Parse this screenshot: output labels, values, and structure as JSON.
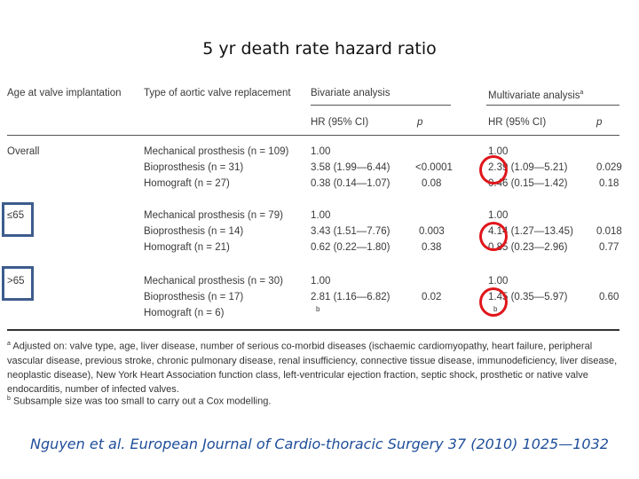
{
  "title": "5 yr death rate hazard ratio",
  "table": {
    "headers": {
      "age": "Age at valve implantation",
      "type": "Type of aortic valve replacement",
      "bivariate": "Bivariate analysis",
      "multivariate": "Multivariate analysis",
      "multivariate_sup": "a",
      "hr_ci": "HR (95% CI)",
      "p": "p"
    },
    "groups": [
      {
        "label": "Overall",
        "rows": [
          {
            "type": "Mechanical prosthesis (n = 109)",
            "bi_hr": "1.00",
            "bi_p": "",
            "multi_hr": "1.00",
            "multi_p": ""
          },
          {
            "type": "Bioprosthesis (n = 31)",
            "bi_hr": "3.58 (1.99—6.44)",
            "bi_p": "<0.0001",
            "multi_hr": "2.39 (1.09—5.21)",
            "multi_p": "0.029"
          },
          {
            "type": "Homograft (n = 27)",
            "bi_hr": "0.38 (0.14—1.07)",
            "bi_p": "0.08",
            "multi_hr": "0.46 (0.15—1.42)",
            "multi_p": "0.18"
          }
        ]
      },
      {
        "label": "≤65",
        "rows": [
          {
            "type": "Mechanical prosthesis (n = 79)",
            "bi_hr": "1.00",
            "bi_p": "",
            "multi_hr": "1.00",
            "multi_p": ""
          },
          {
            "type": "Bioprosthesis (n = 14)",
            "bi_hr": "3.43 (1.51—7.76)",
            "bi_p": "0.003",
            "multi_hr": "4.14 (1.27—13.45)",
            "multi_p": "0.018"
          },
          {
            "type": "Homograft (n = 21)",
            "bi_hr": "0.62 (0.22—1.80)",
            "bi_p": "0.38",
            "multi_hr": "0.85 (0.23—2.96)",
            "multi_p": "0.77"
          }
        ]
      },
      {
        "label": ">65",
        "rows": [
          {
            "type": "Mechanical prosthesis (n = 30)",
            "bi_hr": "1.00",
            "bi_p": "",
            "multi_hr": "1.00",
            "multi_p": ""
          },
          {
            "type": "Bioprosthesis (n = 17)",
            "bi_hr": "2.81 (1.16—6.82)",
            "bi_p": "0.02",
            "multi_hr": "1.45 (0.35—5.97)",
            "multi_p": "0.60"
          },
          {
            "type": "Homograft (n = 6)",
            "bi_hr": "b",
            "bi_p": "",
            "multi_hr": "b",
            "multi_p": ""
          }
        ]
      }
    ],
    "footnotes": {
      "a_marker": "a",
      "a_text": "Adjusted on: valve type, age, liver disease, number of serious co-morbid diseases (ischaemic cardiomyopathy, heart failure, peripheral vascular disease, previous stroke, chronic pulmonary disease, renal insufficiency, connective tissue disease, immunodeficiency, liver disease, neoplastic disease), New York Heart Association function class, left-ventricular ejection fraction, septic shock, prosthetic or native valve endocarditis, number of infected valves.",
      "b_marker": "b",
      "b_text": "Subsample size was too small to carry out a Cox modelling."
    }
  },
  "citation": "Nguyen et al. European Journal of Cardio-thoracic Surgery 37 (2010) 1025—1032",
  "colors": {
    "highlight_circle": "#e0161b",
    "highlight_box": "#3d5c8c",
    "citation": "#1f4e9a"
  }
}
